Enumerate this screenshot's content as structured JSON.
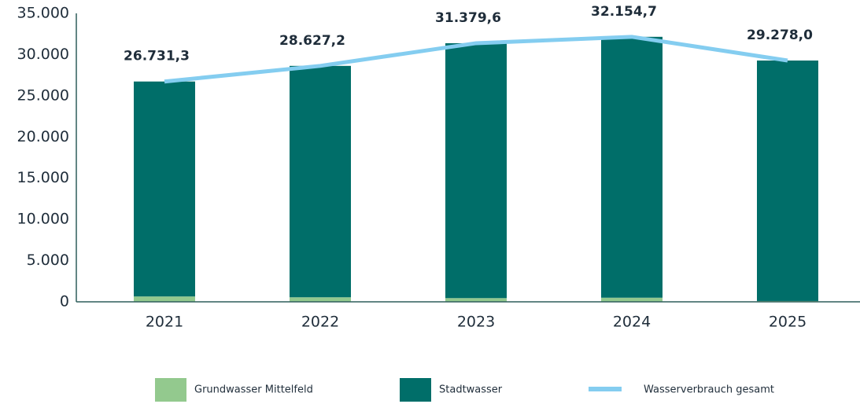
{
  "chart_data": {
    "type": "bar",
    "categories": [
      "2021",
      "2022",
      "2023",
      "2024",
      "2025"
    ],
    "series": [
      {
        "name": "Grundwasser Mittelfeld",
        "color": "#93c98e",
        "values": [
          650,
          550,
          450,
          500,
          100
        ]
      },
      {
        "name": "Stadtwasser",
        "color": "#006e69",
        "values": [
          26081.3,
          28077.2,
          30929.6,
          31654.7,
          29178.0
        ]
      },
      {
        "name": "Wasserverbrauch gesamt",
        "color": "#84cdf0",
        "type": "line",
        "values": [
          26731.3,
          28627.2,
          31379.6,
          32154.7,
          29278.0
        ],
        "value_labels": [
          "26.731,3",
          "28.627,2",
          "31.379,6",
          "32.154,7",
          "29.278,0"
        ]
      }
    ],
    "stacked": true,
    "ylim": [
      0,
      35000
    ],
    "yticks": [
      0,
      {
        "value": 5000,
        "label": "5.000"
      },
      {
        "value": 10000,
        "label": "10.000"
      },
      {
        "value": 15000,
        "label": "15.000"
      },
      {
        "value": 20000,
        "label": "20.000"
      },
      {
        "value": 25000,
        "label": "25.000"
      },
      {
        "value": 30000,
        "label": "30.000"
      },
      {
        "value": 35000,
        "label": "35.000"
      }
    ],
    "grid": false,
    "legend": "bottom"
  }
}
